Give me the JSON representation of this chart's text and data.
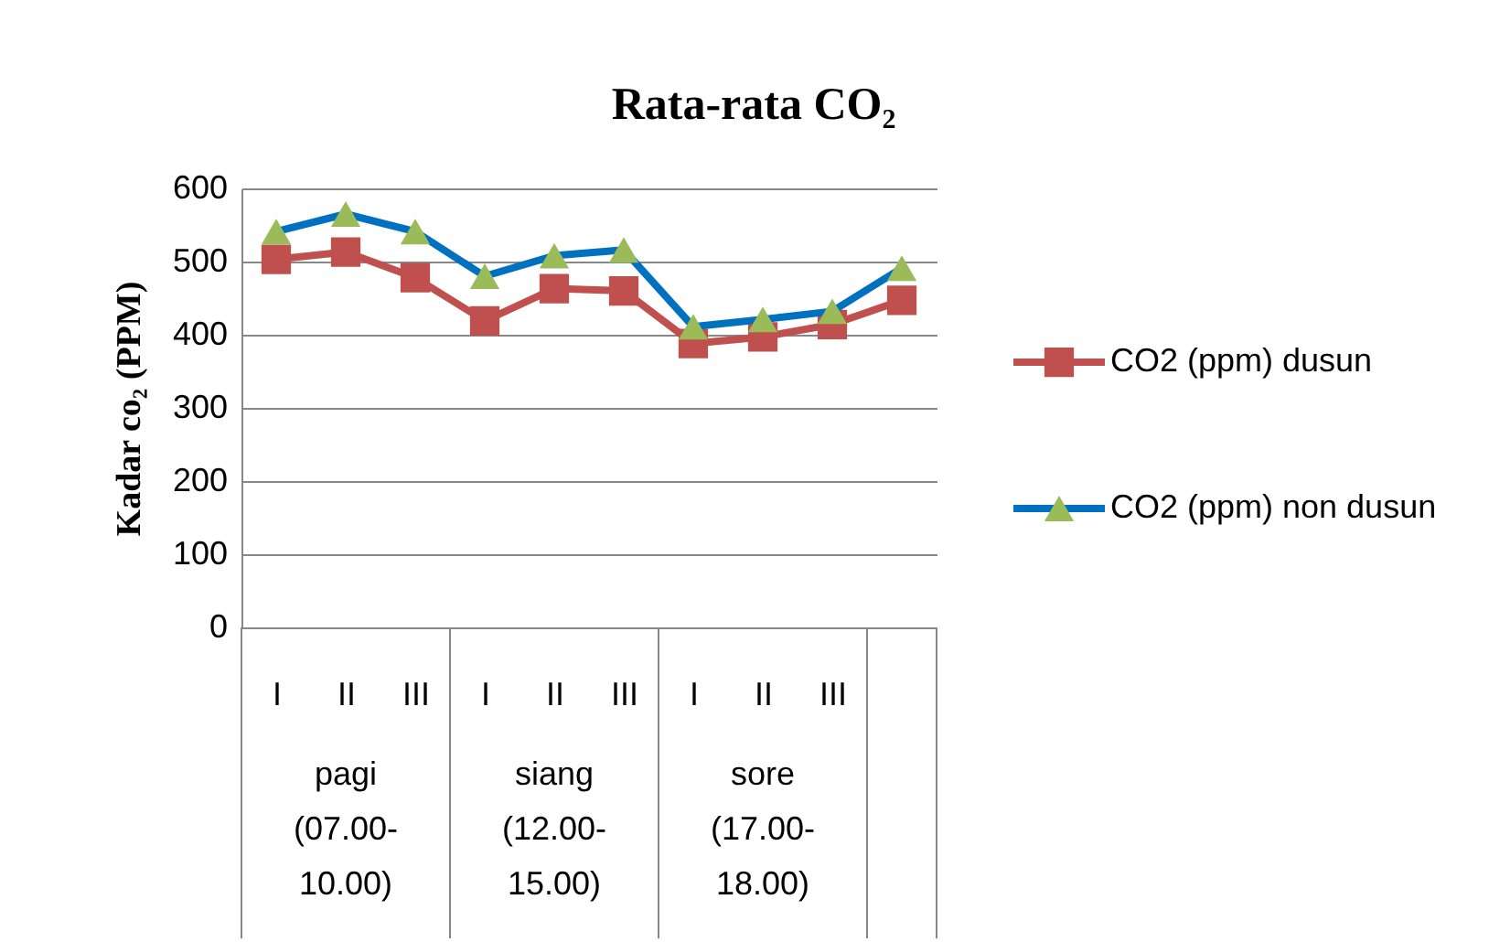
{
  "chart_data": {
    "type": "line",
    "title": "Rata-rata CO₂",
    "ylabel": "Kadar co₂ (PPM)",
    "categories": [
      "I",
      "II",
      "III",
      "I",
      "II",
      "III",
      "I",
      "II",
      "III",
      null
    ],
    "annotations": [
      "pagi (07.00-10.00)",
      "siang (12.00-15.00)",
      "sore (17.00-18.00)"
    ],
    "series": [
      {
        "name": "CO2 (ppm) dusun",
        "color": "#c0504d",
        "marker": "square",
        "values": [
          503,
          513,
          478,
          419,
          463,
          460,
          388,
          397,
          414,
          447
        ]
      },
      {
        "name": "CO2 (ppm) non dusun",
        "color": "#0070c0",
        "marker": "triangle",
        "colors": [
          "#9bbb59",
          "#9bbb59",
          "#9bbb59",
          "#9bbb59",
          "#9bbb59",
          "#9bbb59",
          "#9bbb59",
          "#9bbb59",
          "#9bbb59",
          "#9bbb59"
        ],
        "values": [
          541,
          565,
          541,
          480,
          508,
          516,
          411,
          421,
          432,
          491
        ]
      }
    ],
    "ylim": [
      0,
      600
    ],
    "yticks": [
      0,
      100,
      200,
      300,
      400,
      500,
      600
    ],
    "grid": "y",
    "legend": "right"
  }
}
